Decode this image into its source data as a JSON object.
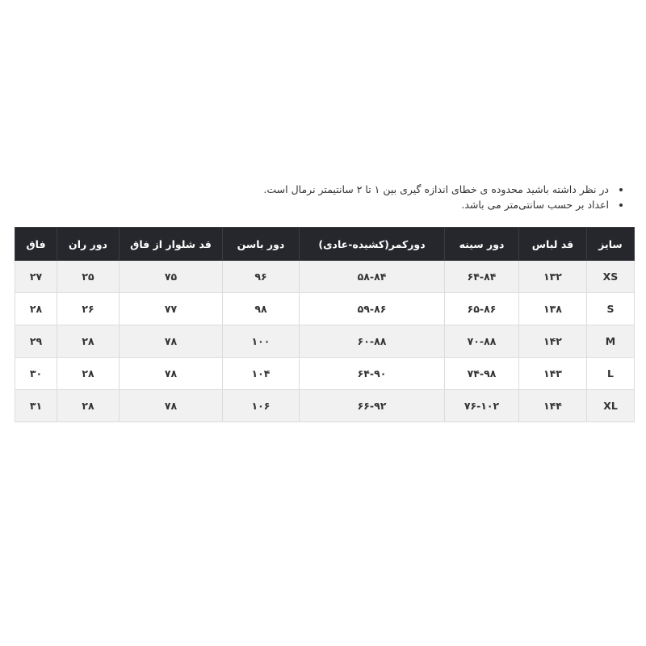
{
  "notes": [
    "در نظر داشته باشید محدوده ی خطای اندازه گیری بین ۱ تا ۲ سانتیمتر نرمال است.",
    "اعداد بر حسب سانتی‌متر می باشد."
  ],
  "table": {
    "headers": [
      "سایز",
      "قد لباس",
      "دور سینه",
      "دورکمر(کشیده-عادی)",
      "دور باسن",
      "قد شلوار از فاق",
      "دور ران",
      "فاق"
    ],
    "rows": [
      [
        "XS",
        "۱۳۲",
        "۶۴-۸۴",
        "۵۸-۸۴",
        "۹۶",
        "۷۵",
        "۲۵",
        "۲۷"
      ],
      [
        "S",
        "۱۳۸",
        "۶۵-۸۶",
        "۵۹-۸۶",
        "۹۸",
        "۷۷",
        "۲۶",
        "۲۸"
      ],
      [
        "M",
        "۱۴۲",
        "۷۰-۸۸",
        "۶۰-۸۸",
        "۱۰۰",
        "۷۸",
        "۲۸",
        "۲۹"
      ],
      [
        "L",
        "۱۴۳",
        "۷۴-۹۸",
        "۶۴-۹۰",
        "۱۰۴",
        "۷۸",
        "۲۸",
        "۳۰"
      ],
      [
        "XL",
        "۱۴۴",
        "۷۶-۱۰۲",
        "۶۶-۹۲",
        "۱۰۶",
        "۷۸",
        "۲۸",
        "۳۱"
      ]
    ]
  },
  "colors": {
    "header_bg": "#25272c",
    "header_text": "#ffffff",
    "row_alt": "#f1f1f1"
  }
}
